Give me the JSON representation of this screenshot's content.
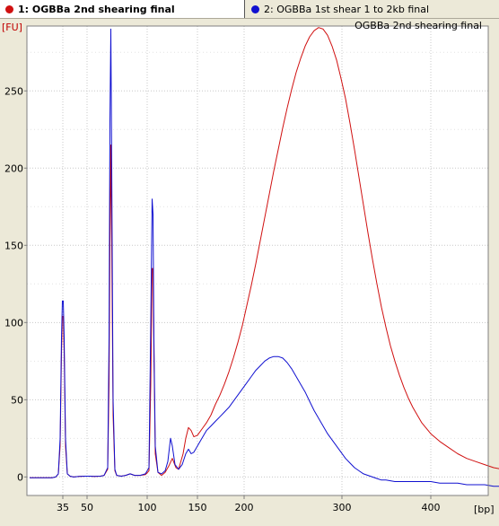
{
  "tabs": [
    {
      "number": "1:",
      "label": "OGBBa 2nd shearing final",
      "color": "#d01010",
      "active": true
    },
    {
      "number": "2:",
      "label": "OGBBa 1st shear 1 to 2kb final",
      "color": "#1010d0",
      "active": false
    }
  ],
  "chart_data": {
    "type": "line",
    "title": "OGBBa 2nd shearing final",
    "ylabel": "[FU]",
    "xlabel": "[bp]",
    "ylim": [
      -12,
      292
    ],
    "yticks": [
      0,
      50,
      100,
      150,
      200,
      250
    ],
    "xticks": [
      "35",
      "50",
      "100",
      "150",
      "200",
      "300",
      "400"
    ],
    "grid": true,
    "series": [
      {
        "color": "#d01010",
        "points": [
          [
            -37,
            -0.5
          ],
          [
            -20,
            -0.5
          ],
          [
            -12,
            -0.5
          ],
          [
            -8,
            0
          ],
          [
            -5,
            2
          ],
          [
            -3,
            20
          ],
          [
            -1.5,
            80
          ],
          [
            -0.5,
            104
          ],
          [
            0.5,
            104
          ],
          [
            1.5,
            80
          ],
          [
            3,
            20
          ],
          [
            5,
            2
          ],
          [
            8,
            0.5
          ],
          [
            12,
            0
          ],
          [
            18,
            0.3
          ],
          [
            25,
            0.5
          ],
          [
            30,
            0.5
          ],
          [
            35,
            0.3
          ],
          [
            42,
            0.5
          ],
          [
            46,
            1
          ],
          [
            50,
            5
          ],
          [
            51.5,
            60
          ],
          [
            52.5,
            150
          ],
          [
            53.5,
            215
          ],
          [
            54.5,
            150
          ],
          [
            56,
            40
          ],
          [
            58,
            4
          ],
          [
            60,
            1
          ],
          [
            65,
            0.5
          ],
          [
            70,
            1
          ],
          [
            75,
            2
          ],
          [
            80,
            1
          ],
          [
            86,
            1
          ],
          [
            92,
            1.5
          ],
          [
            96,
            4
          ],
          [
            98,
            60
          ],
          [
            99.5,
            135
          ],
          [
            100.5,
            135
          ],
          [
            101.5,
            80
          ],
          [
            103,
            15
          ],
          [
            106,
            3
          ],
          [
            110,
            1
          ],
          [
            114,
            3
          ],
          [
            118,
            7
          ],
          [
            122,
            12
          ],
          [
            126,
            6
          ],
          [
            129,
            5
          ],
          [
            131,
            9
          ],
          [
            134,
            15
          ],
          [
            137,
            25
          ],
          [
            140,
            32
          ],
          [
            143,
            30
          ],
          [
            146,
            26
          ],
          [
            150,
            27
          ],
          [
            155,
            31
          ],
          [
            160,
            35
          ],
          [
            165,
            40
          ],
          [
            170,
            47
          ],
          [
            175,
            53
          ],
          [
            180,
            60
          ],
          [
            185,
            68
          ],
          [
            190,
            77
          ],
          [
            195,
            87
          ],
          [
            200,
            98
          ],
          [
            205,
            111
          ],
          [
            210,
            124
          ],
          [
            215,
            138
          ],
          [
            220,
            153
          ],
          [
            225,
            168
          ],
          [
            230,
            183
          ],
          [
            235,
            198
          ],
          [
            240,
            212
          ],
          [
            245,
            226
          ],
          [
            250,
            239
          ],
          [
            255,
            251
          ],
          [
            260,
            262
          ],
          [
            265,
            271
          ],
          [
            270,
            279
          ],
          [
            275,
            285
          ],
          [
            280,
            289
          ],
          [
            285,
            291
          ],
          [
            290,
            290
          ],
          [
            295,
            286
          ],
          [
            300,
            279
          ],
          [
            305,
            270
          ],
          [
            310,
            258
          ],
          [
            315,
            245
          ],
          [
            320,
            229
          ],
          [
            325,
            212
          ],
          [
            330,
            194
          ],
          [
            335,
            176
          ],
          [
            340,
            158
          ],
          [
            345,
            141
          ],
          [
            350,
            125
          ],
          [
            355,
            110
          ],
          [
            360,
            97
          ],
          [
            365,
            85
          ],
          [
            370,
            75
          ],
          [
            375,
            66
          ],
          [
            380,
            58
          ],
          [
            385,
            51
          ],
          [
            390,
            45
          ],
          [
            395,
            40
          ],
          [
            400,
            35
          ],
          [
            410,
            28
          ],
          [
            420,
            23
          ],
          [
            430,
            19
          ],
          [
            440,
            15
          ],
          [
            450,
            12
          ],
          [
            460,
            10
          ],
          [
            470,
            8
          ],
          [
            480,
            6
          ],
          [
            490,
            5
          ],
          [
            495,
            4
          ]
        ]
      },
      {
        "color": "#1010d0",
        "points": [
          [
            -37,
            -0.5
          ],
          [
            -20,
            -0.5
          ],
          [
            -12,
            -0.5
          ],
          [
            -8,
            0
          ],
          [
            -5,
            2
          ],
          [
            -3,
            25
          ],
          [
            -1.5,
            90
          ],
          [
            -0.5,
            114
          ],
          [
            0.5,
            114
          ],
          [
            1.5,
            90
          ],
          [
            3,
            25
          ],
          [
            5,
            2
          ],
          [
            8,
            0.5
          ],
          [
            12,
            0
          ],
          [
            18,
            0.3
          ],
          [
            25,
            0.5
          ],
          [
            30,
            0.5
          ],
          [
            35,
            0.3
          ],
          [
            42,
            0.5
          ],
          [
            46,
            1
          ],
          [
            50,
            6
          ],
          [
            51.5,
            90
          ],
          [
            52.5,
            230
          ],
          [
            53.5,
            290
          ],
          [
            54.5,
            200
          ],
          [
            56,
            50
          ],
          [
            58,
            5
          ],
          [
            60,
            1
          ],
          [
            65,
            0.5
          ],
          [
            70,
            1
          ],
          [
            75,
            2
          ],
          [
            80,
            1
          ],
          [
            86,
            1
          ],
          [
            92,
            2
          ],
          [
            96,
            6
          ],
          [
            98,
            100
          ],
          [
            99.5,
            180
          ],
          [
            100.5,
            170
          ],
          [
            101.5,
            90
          ],
          [
            103,
            20
          ],
          [
            106,
            3
          ],
          [
            110,
            2
          ],
          [
            114,
            4
          ],
          [
            117,
            10
          ],
          [
            120,
            25
          ],
          [
            122,
            20
          ],
          [
            125,
            8
          ],
          [
            129,
            5
          ],
          [
            133,
            8
          ],
          [
            137,
            15
          ],
          [
            140,
            18
          ],
          [
            143,
            15
          ],
          [
            146,
            16
          ],
          [
            150,
            20
          ],
          [
            155,
            25
          ],
          [
            160,
            30
          ],
          [
            165,
            33
          ],
          [
            170,
            36
          ],
          [
            175,
            39
          ],
          [
            180,
            42
          ],
          [
            185,
            45
          ],
          [
            190,
            49
          ],
          [
            195,
            53
          ],
          [
            200,
            57
          ],
          [
            205,
            61
          ],
          [
            210,
            65
          ],
          [
            215,
            69
          ],
          [
            220,
            72
          ],
          [
            225,
            75
          ],
          [
            230,
            77
          ],
          [
            235,
            78
          ],
          [
            240,
            78
          ],
          [
            245,
            77
          ],
          [
            250,
            74
          ],
          [
            255,
            70
          ],
          [
            260,
            65
          ],
          [
            265,
            60
          ],
          [
            270,
            55
          ],
          [
            275,
            49
          ],
          [
            280,
            43
          ],
          [
            285,
            38
          ],
          [
            290,
            33
          ],
          [
            295,
            28
          ],
          [
            300,
            24
          ],
          [
            305,
            20
          ],
          [
            310,
            16
          ],
          [
            315,
            12
          ],
          [
            320,
            9
          ],
          [
            325,
            6
          ],
          [
            330,
            4
          ],
          [
            335,
            2
          ],
          [
            340,
            1
          ],
          [
            345,
            0
          ],
          [
            350,
            -1
          ],
          [
            355,
            -2
          ],
          [
            360,
            -2
          ],
          [
            370,
            -3
          ],
          [
            380,
            -3
          ],
          [
            390,
            -3
          ],
          [
            400,
            -3
          ],
          [
            410,
            -3
          ],
          [
            420,
            -4
          ],
          [
            430,
            -4
          ],
          [
            440,
            -4
          ],
          [
            450,
            -5
          ],
          [
            460,
            -5
          ],
          [
            470,
            -5
          ],
          [
            480,
            -6
          ],
          [
            490,
            -6
          ],
          [
            495,
            -6
          ]
        ]
      }
    ]
  }
}
